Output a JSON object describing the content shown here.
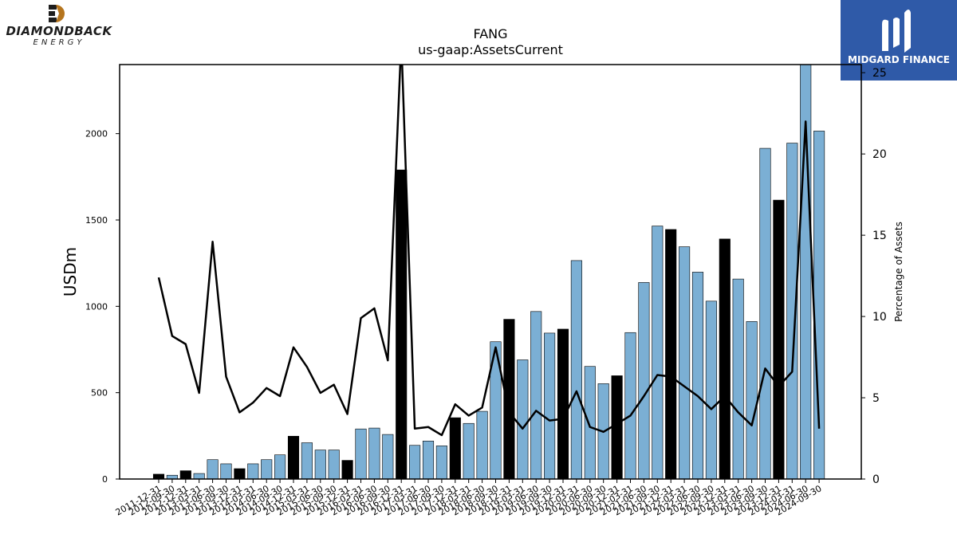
{
  "brands": {
    "left_name": "DIAMONDBACK",
    "left_sub": "ENERGY",
    "right_name": "MIDGARD FINANCE",
    "colors": {
      "left_mark": "#b5751e",
      "left_text": "#1d1d1d",
      "right_bg": "#2f5aa8",
      "right_text": "#ffffff"
    }
  },
  "chart_data": {
    "type": "bar",
    "title": "FANG",
    "subtitle": "us-gaap:AssetsCurrent",
    "ylabel": "USDm",
    "y2label": "Percentage of Assets",
    "ylim": [
      0,
      2400
    ],
    "y2lim": [
      0,
      25.5
    ],
    "yticks": [
      0,
      500,
      1000,
      1500,
      2000
    ],
    "y2ticks": [
      0,
      5,
      10,
      15,
      20,
      25
    ],
    "grid": false,
    "colors": {
      "bar_q": "#7bafd4",
      "bar_fy": "#000000",
      "bar_edge": "#000000",
      "line": "#000000"
    },
    "categories": [
      "2011-12-31",
      "2012-09-30",
      "2012-12-31",
      "2013-03-31",
      "2013-06-30",
      "2013-09-30",
      "2013-12-31",
      "2014-03-31",
      "2014-06-30",
      "2014-09-30",
      "2014-12-31",
      "2015-03-31",
      "2015-06-30",
      "2015-09-30",
      "2015-12-31",
      "2016-03-31",
      "2016-06-30",
      "2016-09-30",
      "2016-12-31",
      "2017-03-31",
      "2017-06-30",
      "2017-09-30",
      "2017-12-31",
      "2018-03-31",
      "2018-06-30",
      "2018-09-30",
      "2018-12-31",
      "2019-03-31",
      "2019-06-30",
      "2019-09-30",
      "2019-12-31",
      "2020-03-31",
      "2020-06-30",
      "2020-09-30",
      "2020-12-31",
      "2021-03-31",
      "2021-06-30",
      "2021-09-30",
      "2021-12-31",
      "2022-03-31",
      "2022-06-30",
      "2022-09-30",
      "2022-12-31",
      "2023-03-31",
      "2023-06-30",
      "2023-09-30",
      "2023-12-31",
      "2024-03-31",
      "2024-06-30",
      "2024-09-30"
    ],
    "fiscal_year_end": [
      true,
      false,
      true,
      false,
      false,
      false,
      true,
      false,
      false,
      false,
      true,
      false,
      false,
      false,
      true,
      false,
      false,
      false,
      true,
      false,
      false,
      false,
      true,
      false,
      false,
      false,
      true,
      false,
      false,
      false,
      true,
      false,
      false,
      false,
      true,
      false,
      false,
      false,
      true,
      false,
      false,
      false,
      true,
      false,
      false,
      false,
      true,
      false,
      false,
      false
    ],
    "series": [
      {
        "axis": "left",
        "kind": "bar",
        "values": [
          28,
          22,
          48,
          32,
          112,
          88,
          60,
          88,
          112,
          140,
          248,
          210,
          168,
          168,
          108,
          290,
          295,
          258,
          1790,
          195,
          220,
          192,
          355,
          322,
          392,
          795,
          925,
          690,
          970,
          845,
          868,
          1265,
          652,
          552,
          598,
          848,
          1138,
          1465,
          1445,
          1345,
          1198,
          1030,
          1390,
          1158,
          912,
          1915,
          1615,
          1945,
          2410,
          2015
        ]
      },
      {
        "axis": "right",
        "kind": "line",
        "values": [
          12.4,
          8.8,
          8.3,
          5.3,
          14.6,
          6.3,
          4.1,
          4.7,
          5.6,
          5.1,
          8.1,
          6.9,
          5.3,
          5.8,
          4.0,
          9.9,
          10.5,
          7.3,
          27.0,
          3.1,
          3.2,
          2.7,
          4.6,
          3.9,
          4.4,
          8.1,
          4.1,
          3.1,
          4.2,
          3.6,
          3.7,
          5.4,
          3.2,
          2.9,
          3.4,
          3.9,
          5.1,
          6.4,
          6.3,
          5.7,
          5.1,
          4.3,
          5.1,
          4.1,
          3.3,
          6.8,
          5.7,
          6.6,
          22.0,
          3.1
        ]
      }
    ]
  }
}
